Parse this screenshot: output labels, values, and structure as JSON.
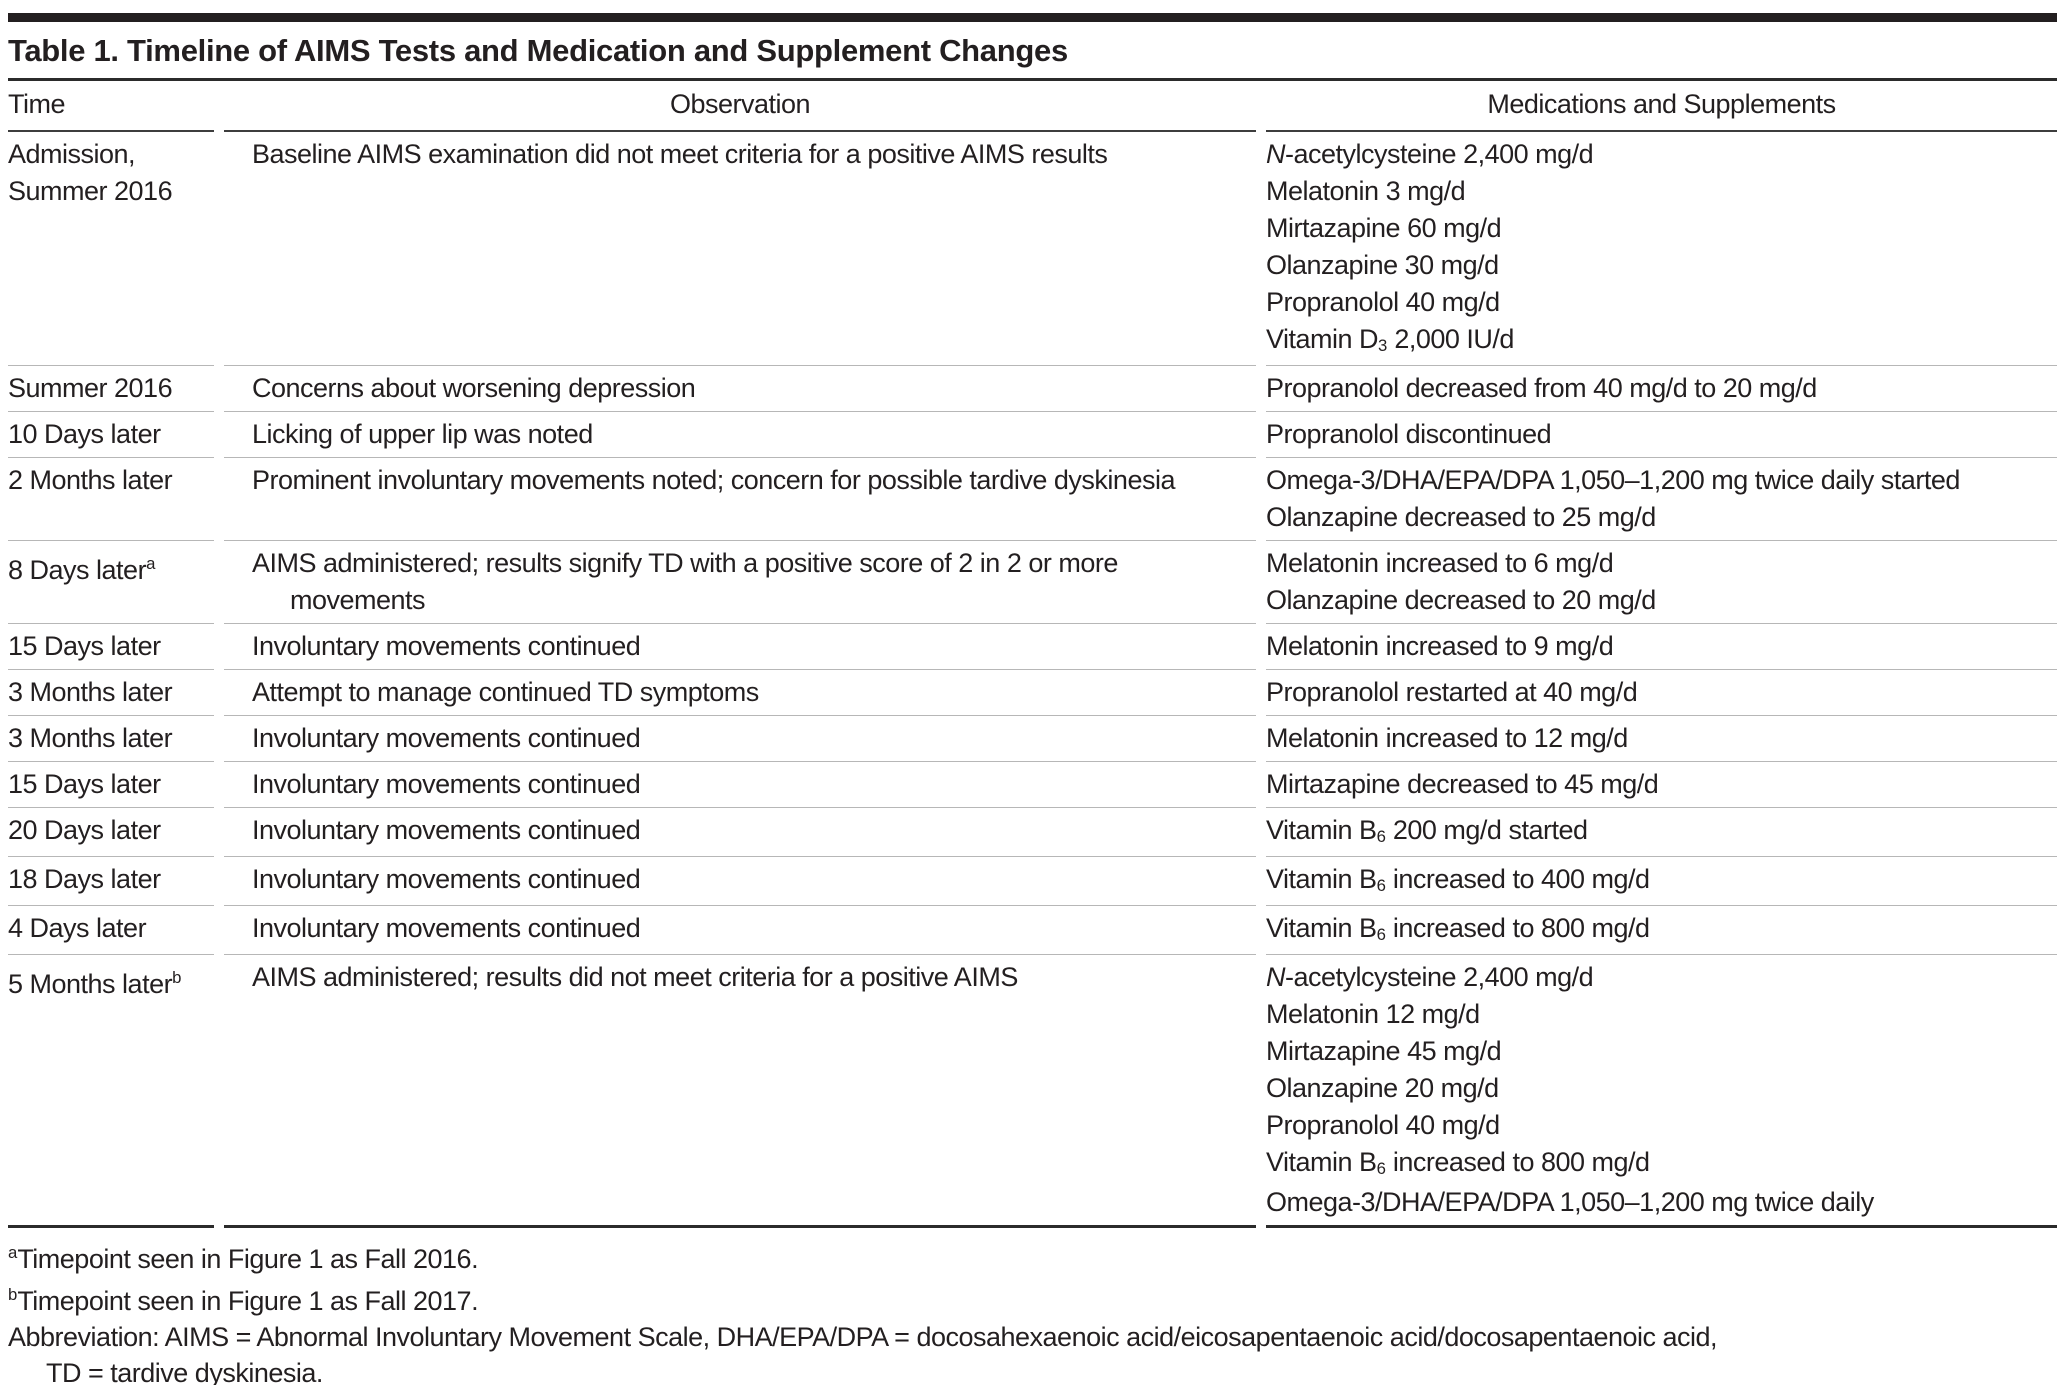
{
  "title": "Table 1. Timeline of AIMS Tests and Medication and Supplement Changes",
  "columns": [
    "Time",
    "Observation",
    "Medications and Supplements"
  ],
  "rows": [
    {
      "time": "Admission, Summer 2016",
      "observation": "Baseline AIMS examination did not meet criteria for a positive AIMS results",
      "medications": [
        "*N*-acetylcysteine 2,400 mg/d",
        "Melatonin 3 mg/d",
        "Mirtazapine 60 mg/d",
        "Olanzapine 30 mg/d",
        "Propranolol 40 mg/d",
        "Vitamin D~3~ 2,000 IU/d"
      ]
    },
    {
      "time": "Summer 2016",
      "observation": "Concerns about worsening depression",
      "medications": [
        "Propranolol decreased from 40 mg/d to 20 mg/d"
      ]
    },
    {
      "time": "10 Days later",
      "observation": "Licking of upper lip was noted",
      "medications": [
        "Propranolol discontinued"
      ]
    },
    {
      "time": "2 Months later",
      "observation": "Prominent involuntary movements noted; concern for possible tardive dyskinesia",
      "medications": [
        "Omega-3/DHA/EPA/DPA 1,050–1,200 mg twice daily started",
        "Olanzapine decreased to 25 mg/d"
      ]
    },
    {
      "time": "8 Days later^a^",
      "observation": "AIMS administered; results signify TD with a positive score of 2 in 2 or more movements",
      "medications": [
        "Melatonin increased to 6 mg/d",
        "Olanzapine decreased to 20 mg/d"
      ]
    },
    {
      "time": "15 Days later",
      "observation": "Involuntary movements continued",
      "medications": [
        "Melatonin increased to 9 mg/d"
      ]
    },
    {
      "time": "3 Months later",
      "observation": "Attempt to manage continued TD symptoms",
      "medications": [
        "Propranolol restarted at 40 mg/d"
      ]
    },
    {
      "time": "3 Months later",
      "observation": "Involuntary movements continued",
      "medications": [
        "Melatonin increased to 12 mg/d"
      ]
    },
    {
      "time": "15 Days later",
      "observation": "Involuntary movements continued",
      "medications": [
        "Mirtazapine decreased to 45 mg/d"
      ]
    },
    {
      "time": "20 Days later",
      "observation": "Involuntary movements continued",
      "medications": [
        "Vitamin B~6~ 200 mg/d started"
      ]
    },
    {
      "time": "18 Days later",
      "observation": "Involuntary movements continued",
      "medications": [
        "Vitamin B~6~ increased to 400 mg/d"
      ]
    },
    {
      "time": "4 Days later",
      "observation": "Involuntary movements continued",
      "medications": [
        "Vitamin B~6~ increased to 800 mg/d"
      ]
    },
    {
      "time": "5 Months later^b^",
      "observation": "AIMS administered; results did not meet criteria for a positive AIMS",
      "medications": [
        "*N*-acetylcysteine 2,400 mg/d",
        "Melatonin 12 mg/d",
        "Mirtazapine 45 mg/d",
        "Olanzapine 20 mg/d",
        "Propranolol 40 mg/d",
        "Vitamin B~6~ increased to 800 mg/d",
        "Omega-3/DHA/EPA/DPA 1,050–1,200 mg twice daily"
      ]
    }
  ],
  "footnotes": {
    "a": "^a^Timepoint seen in Figure 1 as Fall 2016.",
    "b": "^b^Timepoint seen in Figure 1 as Fall 2017.",
    "abbreviation_line1": "Abbreviation: AIMS = Abnormal Involuntary Movement Scale, DHA/EPA/DPA = docosahexaenoic acid/eicosapentaenoic acid/docosapentaenoic acid,",
    "abbreviation_line2": "TD = tardive dyskinesia."
  },
  "colors": {
    "text": "#231f20",
    "heavy_rule": "#231f20",
    "medium_rule": "#3d3d3d",
    "row_separator": "#b7b7b7"
  }
}
